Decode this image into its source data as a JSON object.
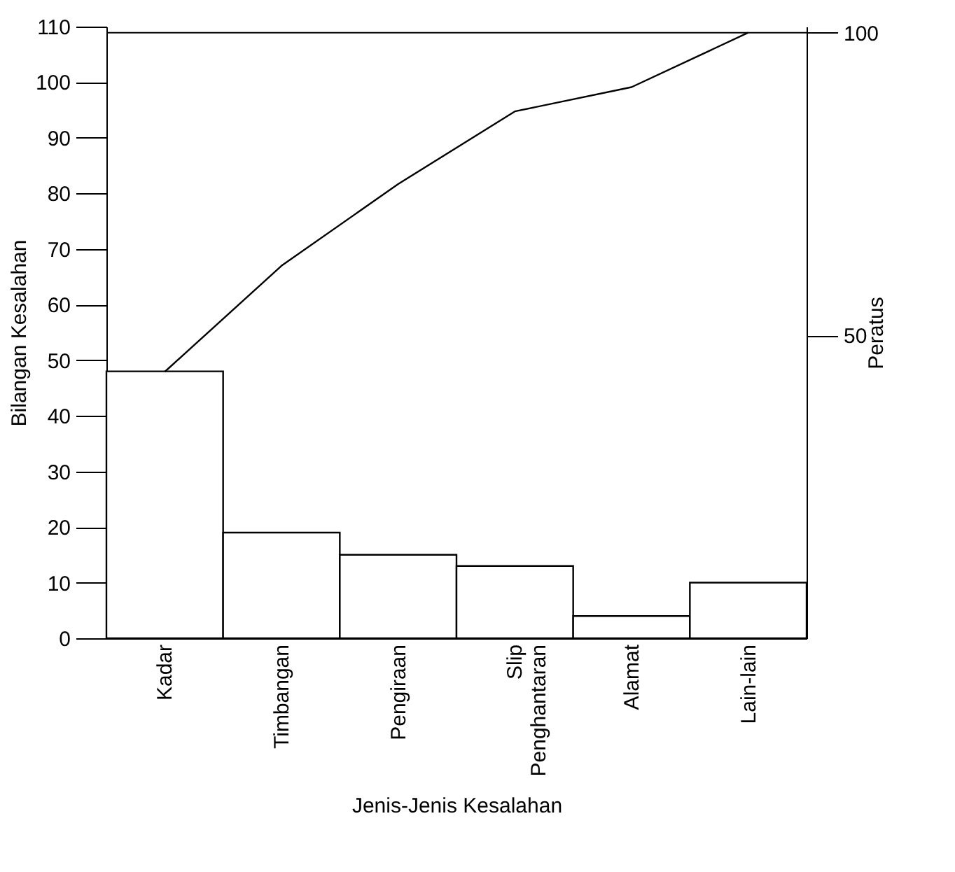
{
  "chart_data": {
    "type": "bar",
    "xlabel": "Jenis-Jenis Kesalahan",
    "ylabel": "Bilangan Kesalahan",
    "y2label": "Peratus",
    "categories": [
      "Kadar",
      "Timbangan",
      "Pengiraan",
      "Slip Penghantaran",
      "Alamat",
      "Lain-lain"
    ],
    "series": [
      {
        "color": "#ffffff",
        "values": [
          48,
          19,
          15,
          13,
          4,
          10
        ]
      },
      {
        "type": "line",
        "axis": "y2",
        "color": "#000000",
        "values": [
          44,
          61.5,
          75,
          87,
          91,
          100
        ]
      }
    ],
    "ylim": [
      0,
      110
    ],
    "yticks": [
      0,
      10,
      20,
      30,
      40,
      50,
      60,
      70,
      80,
      90,
      100,
      110
    ],
    "y2lim": [
      0,
      101
    ],
    "y2ticks": [
      50,
      100
    ],
    "ref_lines": [
      {
        "axis": "y2",
        "value": 100,
        "label": null,
        "color": "#000000"
      }
    ],
    "grid": false,
    "marker": "none",
    "line_style": "solid"
  }
}
